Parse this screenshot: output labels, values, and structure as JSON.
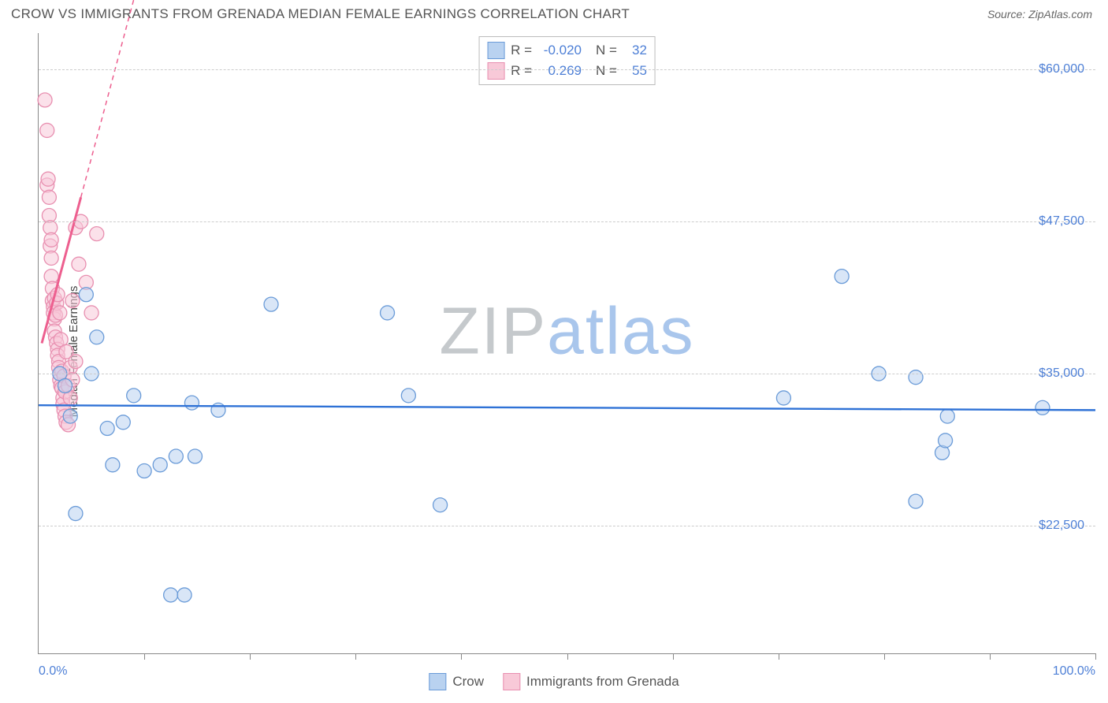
{
  "title": "CROW VS IMMIGRANTS FROM GRENADA MEDIAN FEMALE EARNINGS CORRELATION CHART",
  "source": "Source: ZipAtlas.com",
  "ylabel": "Median Female Earnings",
  "watermark": {
    "text1": "ZIP",
    "text2": "atlas",
    "color1": "#c5c9cc",
    "color2": "#a9c6ec"
  },
  "colors": {
    "blue_fill": "#b9d2f0",
    "blue_stroke": "#6a9bd8",
    "pink_fill": "#f8c9d8",
    "pink_stroke": "#e88fb0",
    "trend_blue": "#2f72d6",
    "trend_pink": "#ed5f8f",
    "axis_label": "#4d7fd6",
    "grid": "#cccccc"
  },
  "chart": {
    "type": "scatter",
    "xlim": [
      0,
      100
    ],
    "ylim": [
      12000,
      63000
    ],
    "y_ticks": [
      22500,
      35000,
      47500,
      60000
    ],
    "y_tick_labels": [
      "$22,500",
      "$35,000",
      "$47,500",
      "$60,000"
    ],
    "x_ticks": [
      0,
      10,
      20,
      30,
      40,
      50,
      60,
      70,
      80,
      90,
      100
    ],
    "x_axis_labels": {
      "left": "0.0%",
      "right": "100.0%"
    },
    "marker_radius": 9,
    "marker_opacity": 0.55,
    "series": [
      {
        "name": "Crow",
        "color_fill": "#b9d2f0",
        "color_stroke": "#6a9bd8",
        "R": "-0.020",
        "N": "32",
        "trend": {
          "x1": 0,
          "y1": 32400,
          "x2": 100,
          "y2": 32000,
          "dash": null,
          "width": 2.4
        },
        "points": [
          [
            2.0,
            35000
          ],
          [
            2.5,
            34000
          ],
          [
            3.5,
            23500
          ],
          [
            4.5,
            41500
          ],
          [
            5.0,
            35000
          ],
          [
            6.5,
            30500
          ],
          [
            7.0,
            27500
          ],
          [
            9.0,
            33200
          ],
          [
            10.0,
            27000
          ],
          [
            11.5,
            27500
          ],
          [
            12.5,
            16800
          ],
          [
            13.0,
            28200
          ],
          [
            13.8,
            16800
          ],
          [
            14.5,
            32600
          ],
          [
            14.8,
            28200
          ],
          [
            22.0,
            40700
          ],
          [
            33.0,
            40000
          ],
          [
            35.0,
            33200
          ],
          [
            38.0,
            24200
          ],
          [
            70.5,
            33000
          ],
          [
            76.0,
            43000
          ],
          [
            79.5,
            35000
          ],
          [
            83.0,
            24500
          ],
          [
            83.0,
            34700
          ],
          [
            85.5,
            28500
          ],
          [
            85.8,
            29500
          ],
          [
            86.0,
            31500
          ],
          [
            95.0,
            32200
          ],
          [
            3.0,
            31500
          ],
          [
            5.5,
            38000
          ],
          [
            8.0,
            31000
          ],
          [
            17.0,
            32000
          ]
        ]
      },
      {
        "name": "Immigrants from Grenada",
        "color_fill": "#f8c9d8",
        "color_stroke": "#e88fb0",
        "R": "0.269",
        "N": "55",
        "trend": {
          "x1": 0.3,
          "y1": 37500,
          "x2": 4.0,
          "y2": 49500,
          "dash": null,
          "width": 3
        },
        "trend_ext": {
          "x1": 4.0,
          "y1": 49500,
          "x2": 10.0,
          "y2": 69000,
          "dash": "6,5",
          "width": 1.5
        },
        "points": [
          [
            0.6,
            57500
          ],
          [
            0.8,
            55000
          ],
          [
            0.8,
            50500
          ],
          [
            0.9,
            51000
          ],
          [
            1.0,
            49500
          ],
          [
            1.0,
            48000
          ],
          [
            1.1,
            47000
          ],
          [
            1.1,
            45500
          ],
          [
            1.2,
            46000
          ],
          [
            1.2,
            44500
          ],
          [
            1.2,
            43000
          ],
          [
            1.3,
            42000
          ],
          [
            1.3,
            41000
          ],
          [
            1.4,
            40500
          ],
          [
            1.4,
            40000
          ],
          [
            1.5,
            41200
          ],
          [
            1.5,
            39500
          ],
          [
            1.5,
            38500
          ],
          [
            1.6,
            39800
          ],
          [
            1.6,
            38000
          ],
          [
            1.7,
            37500
          ],
          [
            1.7,
            40800
          ],
          [
            1.8,
            37000
          ],
          [
            1.8,
            36500
          ],
          [
            1.8,
            41500
          ],
          [
            1.9,
            36000
          ],
          [
            1.9,
            35500
          ],
          [
            2.0,
            35000
          ],
          [
            2.0,
            34500
          ],
          [
            2.0,
            40000
          ],
          [
            2.1,
            34000
          ],
          [
            2.1,
            37800
          ],
          [
            2.2,
            33800
          ],
          [
            2.2,
            35200
          ],
          [
            2.3,
            33000
          ],
          [
            2.3,
            32500
          ],
          [
            2.4,
            32000
          ],
          [
            2.4,
            34800
          ],
          [
            2.5,
            31500
          ],
          [
            2.5,
            33500
          ],
          [
            2.6,
            31000
          ],
          [
            2.6,
            36800
          ],
          [
            2.8,
            34000
          ],
          [
            2.8,
            30800
          ],
          [
            3.0,
            35500
          ],
          [
            3.0,
            33000
          ],
          [
            3.2,
            41000
          ],
          [
            3.2,
            34500
          ],
          [
            3.5,
            47000
          ],
          [
            3.5,
            36000
          ],
          [
            3.8,
            44000
          ],
          [
            4.0,
            47500
          ],
          [
            4.5,
            42500
          ],
          [
            5.0,
            40000
          ],
          [
            5.5,
            46500
          ]
        ]
      }
    ]
  },
  "legend_bottom": [
    {
      "label": "Crow",
      "fill": "#b9d2f0",
      "stroke": "#6a9bd8"
    },
    {
      "label": "Immigrants from Grenada",
      "fill": "#f8c9d8",
      "stroke": "#e88fb0"
    }
  ]
}
